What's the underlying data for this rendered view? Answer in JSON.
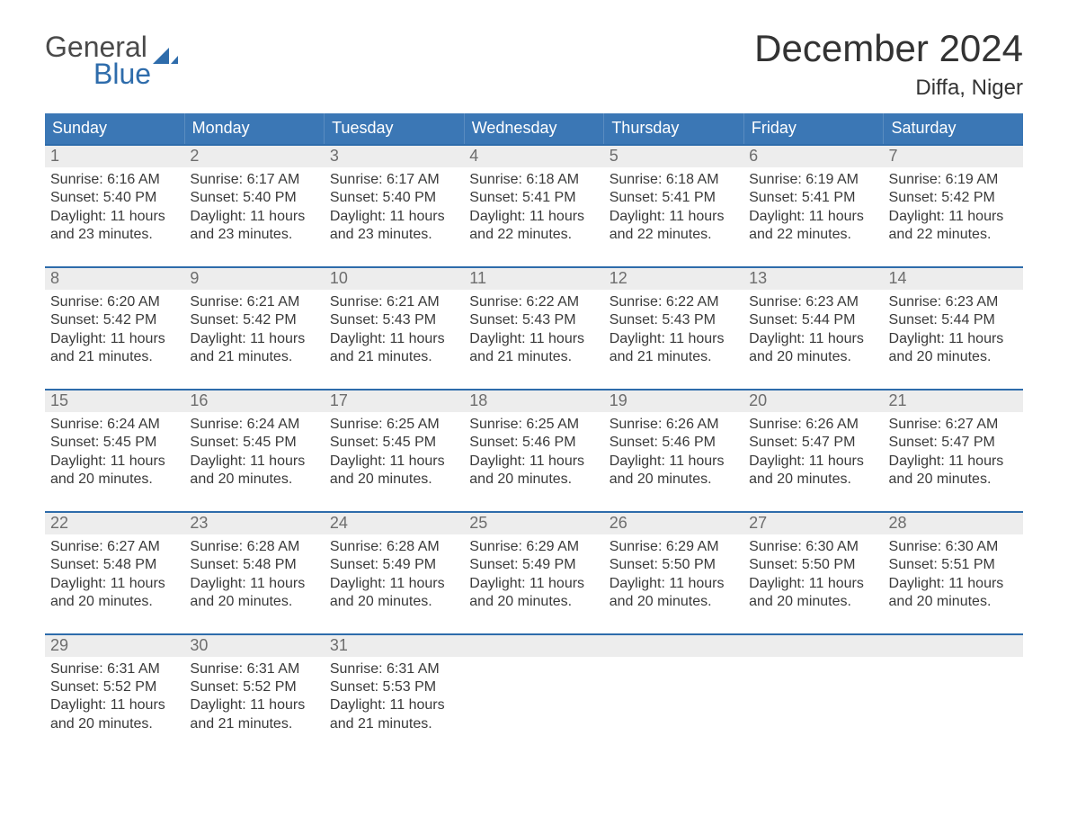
{
  "logo": {
    "word1": "General",
    "word2": "Blue",
    "triangle_color": "#2e6cab"
  },
  "title": {
    "month": "December 2024",
    "location": "Diffa, Niger"
  },
  "colors": {
    "header_bg": "#3b77b5",
    "header_text": "#ffffff",
    "week_border": "#2e6cab",
    "daynum_bg": "#ededed",
    "daynum_text": "#6d6d6d",
    "body_text": "#3a3a3a",
    "page_bg": "#ffffff"
  },
  "dow": [
    "Sunday",
    "Monday",
    "Tuesday",
    "Wednesday",
    "Thursday",
    "Friday",
    "Saturday"
  ],
  "weeks": [
    [
      {
        "n": "1",
        "sunrise": "Sunrise: 6:16 AM",
        "sunset": "Sunset: 5:40 PM",
        "day1": "Daylight: 11 hours",
        "day2": "and 23 minutes."
      },
      {
        "n": "2",
        "sunrise": "Sunrise: 6:17 AM",
        "sunset": "Sunset: 5:40 PM",
        "day1": "Daylight: 11 hours",
        "day2": "and 23 minutes."
      },
      {
        "n": "3",
        "sunrise": "Sunrise: 6:17 AM",
        "sunset": "Sunset: 5:40 PM",
        "day1": "Daylight: 11 hours",
        "day2": "and 23 minutes."
      },
      {
        "n": "4",
        "sunrise": "Sunrise: 6:18 AM",
        "sunset": "Sunset: 5:41 PM",
        "day1": "Daylight: 11 hours",
        "day2": "and 22 minutes."
      },
      {
        "n": "5",
        "sunrise": "Sunrise: 6:18 AM",
        "sunset": "Sunset: 5:41 PM",
        "day1": "Daylight: 11 hours",
        "day2": "and 22 minutes."
      },
      {
        "n": "6",
        "sunrise": "Sunrise: 6:19 AM",
        "sunset": "Sunset: 5:41 PM",
        "day1": "Daylight: 11 hours",
        "day2": "and 22 minutes."
      },
      {
        "n": "7",
        "sunrise": "Sunrise: 6:19 AM",
        "sunset": "Sunset: 5:42 PM",
        "day1": "Daylight: 11 hours",
        "day2": "and 22 minutes."
      }
    ],
    [
      {
        "n": "8",
        "sunrise": "Sunrise: 6:20 AM",
        "sunset": "Sunset: 5:42 PM",
        "day1": "Daylight: 11 hours",
        "day2": "and 21 minutes."
      },
      {
        "n": "9",
        "sunrise": "Sunrise: 6:21 AM",
        "sunset": "Sunset: 5:42 PM",
        "day1": "Daylight: 11 hours",
        "day2": "and 21 minutes."
      },
      {
        "n": "10",
        "sunrise": "Sunrise: 6:21 AM",
        "sunset": "Sunset: 5:43 PM",
        "day1": "Daylight: 11 hours",
        "day2": "and 21 minutes."
      },
      {
        "n": "11",
        "sunrise": "Sunrise: 6:22 AM",
        "sunset": "Sunset: 5:43 PM",
        "day1": "Daylight: 11 hours",
        "day2": "and 21 minutes."
      },
      {
        "n": "12",
        "sunrise": "Sunrise: 6:22 AM",
        "sunset": "Sunset: 5:43 PM",
        "day1": "Daylight: 11 hours",
        "day2": "and 21 minutes."
      },
      {
        "n": "13",
        "sunrise": "Sunrise: 6:23 AM",
        "sunset": "Sunset: 5:44 PM",
        "day1": "Daylight: 11 hours",
        "day2": "and 20 minutes."
      },
      {
        "n": "14",
        "sunrise": "Sunrise: 6:23 AM",
        "sunset": "Sunset: 5:44 PM",
        "day1": "Daylight: 11 hours",
        "day2": "and 20 minutes."
      }
    ],
    [
      {
        "n": "15",
        "sunrise": "Sunrise: 6:24 AM",
        "sunset": "Sunset: 5:45 PM",
        "day1": "Daylight: 11 hours",
        "day2": "and 20 minutes."
      },
      {
        "n": "16",
        "sunrise": "Sunrise: 6:24 AM",
        "sunset": "Sunset: 5:45 PM",
        "day1": "Daylight: 11 hours",
        "day2": "and 20 minutes."
      },
      {
        "n": "17",
        "sunrise": "Sunrise: 6:25 AM",
        "sunset": "Sunset: 5:45 PM",
        "day1": "Daylight: 11 hours",
        "day2": "and 20 minutes."
      },
      {
        "n": "18",
        "sunrise": "Sunrise: 6:25 AM",
        "sunset": "Sunset: 5:46 PM",
        "day1": "Daylight: 11 hours",
        "day2": "and 20 minutes."
      },
      {
        "n": "19",
        "sunrise": "Sunrise: 6:26 AM",
        "sunset": "Sunset: 5:46 PM",
        "day1": "Daylight: 11 hours",
        "day2": "and 20 minutes."
      },
      {
        "n": "20",
        "sunrise": "Sunrise: 6:26 AM",
        "sunset": "Sunset: 5:47 PM",
        "day1": "Daylight: 11 hours",
        "day2": "and 20 minutes."
      },
      {
        "n": "21",
        "sunrise": "Sunrise: 6:27 AM",
        "sunset": "Sunset: 5:47 PM",
        "day1": "Daylight: 11 hours",
        "day2": "and 20 minutes."
      }
    ],
    [
      {
        "n": "22",
        "sunrise": "Sunrise: 6:27 AM",
        "sunset": "Sunset: 5:48 PM",
        "day1": "Daylight: 11 hours",
        "day2": "and 20 minutes."
      },
      {
        "n": "23",
        "sunrise": "Sunrise: 6:28 AM",
        "sunset": "Sunset: 5:48 PM",
        "day1": "Daylight: 11 hours",
        "day2": "and 20 minutes."
      },
      {
        "n": "24",
        "sunrise": "Sunrise: 6:28 AM",
        "sunset": "Sunset: 5:49 PM",
        "day1": "Daylight: 11 hours",
        "day2": "and 20 minutes."
      },
      {
        "n": "25",
        "sunrise": "Sunrise: 6:29 AM",
        "sunset": "Sunset: 5:49 PM",
        "day1": "Daylight: 11 hours",
        "day2": "and 20 minutes."
      },
      {
        "n": "26",
        "sunrise": "Sunrise: 6:29 AM",
        "sunset": "Sunset: 5:50 PM",
        "day1": "Daylight: 11 hours",
        "day2": "and 20 minutes."
      },
      {
        "n": "27",
        "sunrise": "Sunrise: 6:30 AM",
        "sunset": "Sunset: 5:50 PM",
        "day1": "Daylight: 11 hours",
        "day2": "and 20 minutes."
      },
      {
        "n": "28",
        "sunrise": "Sunrise: 6:30 AM",
        "sunset": "Sunset: 5:51 PM",
        "day1": "Daylight: 11 hours",
        "day2": "and 20 minutes."
      }
    ],
    [
      {
        "n": "29",
        "sunrise": "Sunrise: 6:31 AM",
        "sunset": "Sunset: 5:52 PM",
        "day1": "Daylight: 11 hours",
        "day2": "and 20 minutes."
      },
      {
        "n": "30",
        "sunrise": "Sunrise: 6:31 AM",
        "sunset": "Sunset: 5:52 PM",
        "day1": "Daylight: 11 hours",
        "day2": "and 21 minutes."
      },
      {
        "n": "31",
        "sunrise": "Sunrise: 6:31 AM",
        "sunset": "Sunset: 5:53 PM",
        "day1": "Daylight: 11 hours",
        "day2": "and 21 minutes."
      },
      {
        "empty": true
      },
      {
        "empty": true
      },
      {
        "empty": true
      },
      {
        "empty": true
      }
    ]
  ]
}
